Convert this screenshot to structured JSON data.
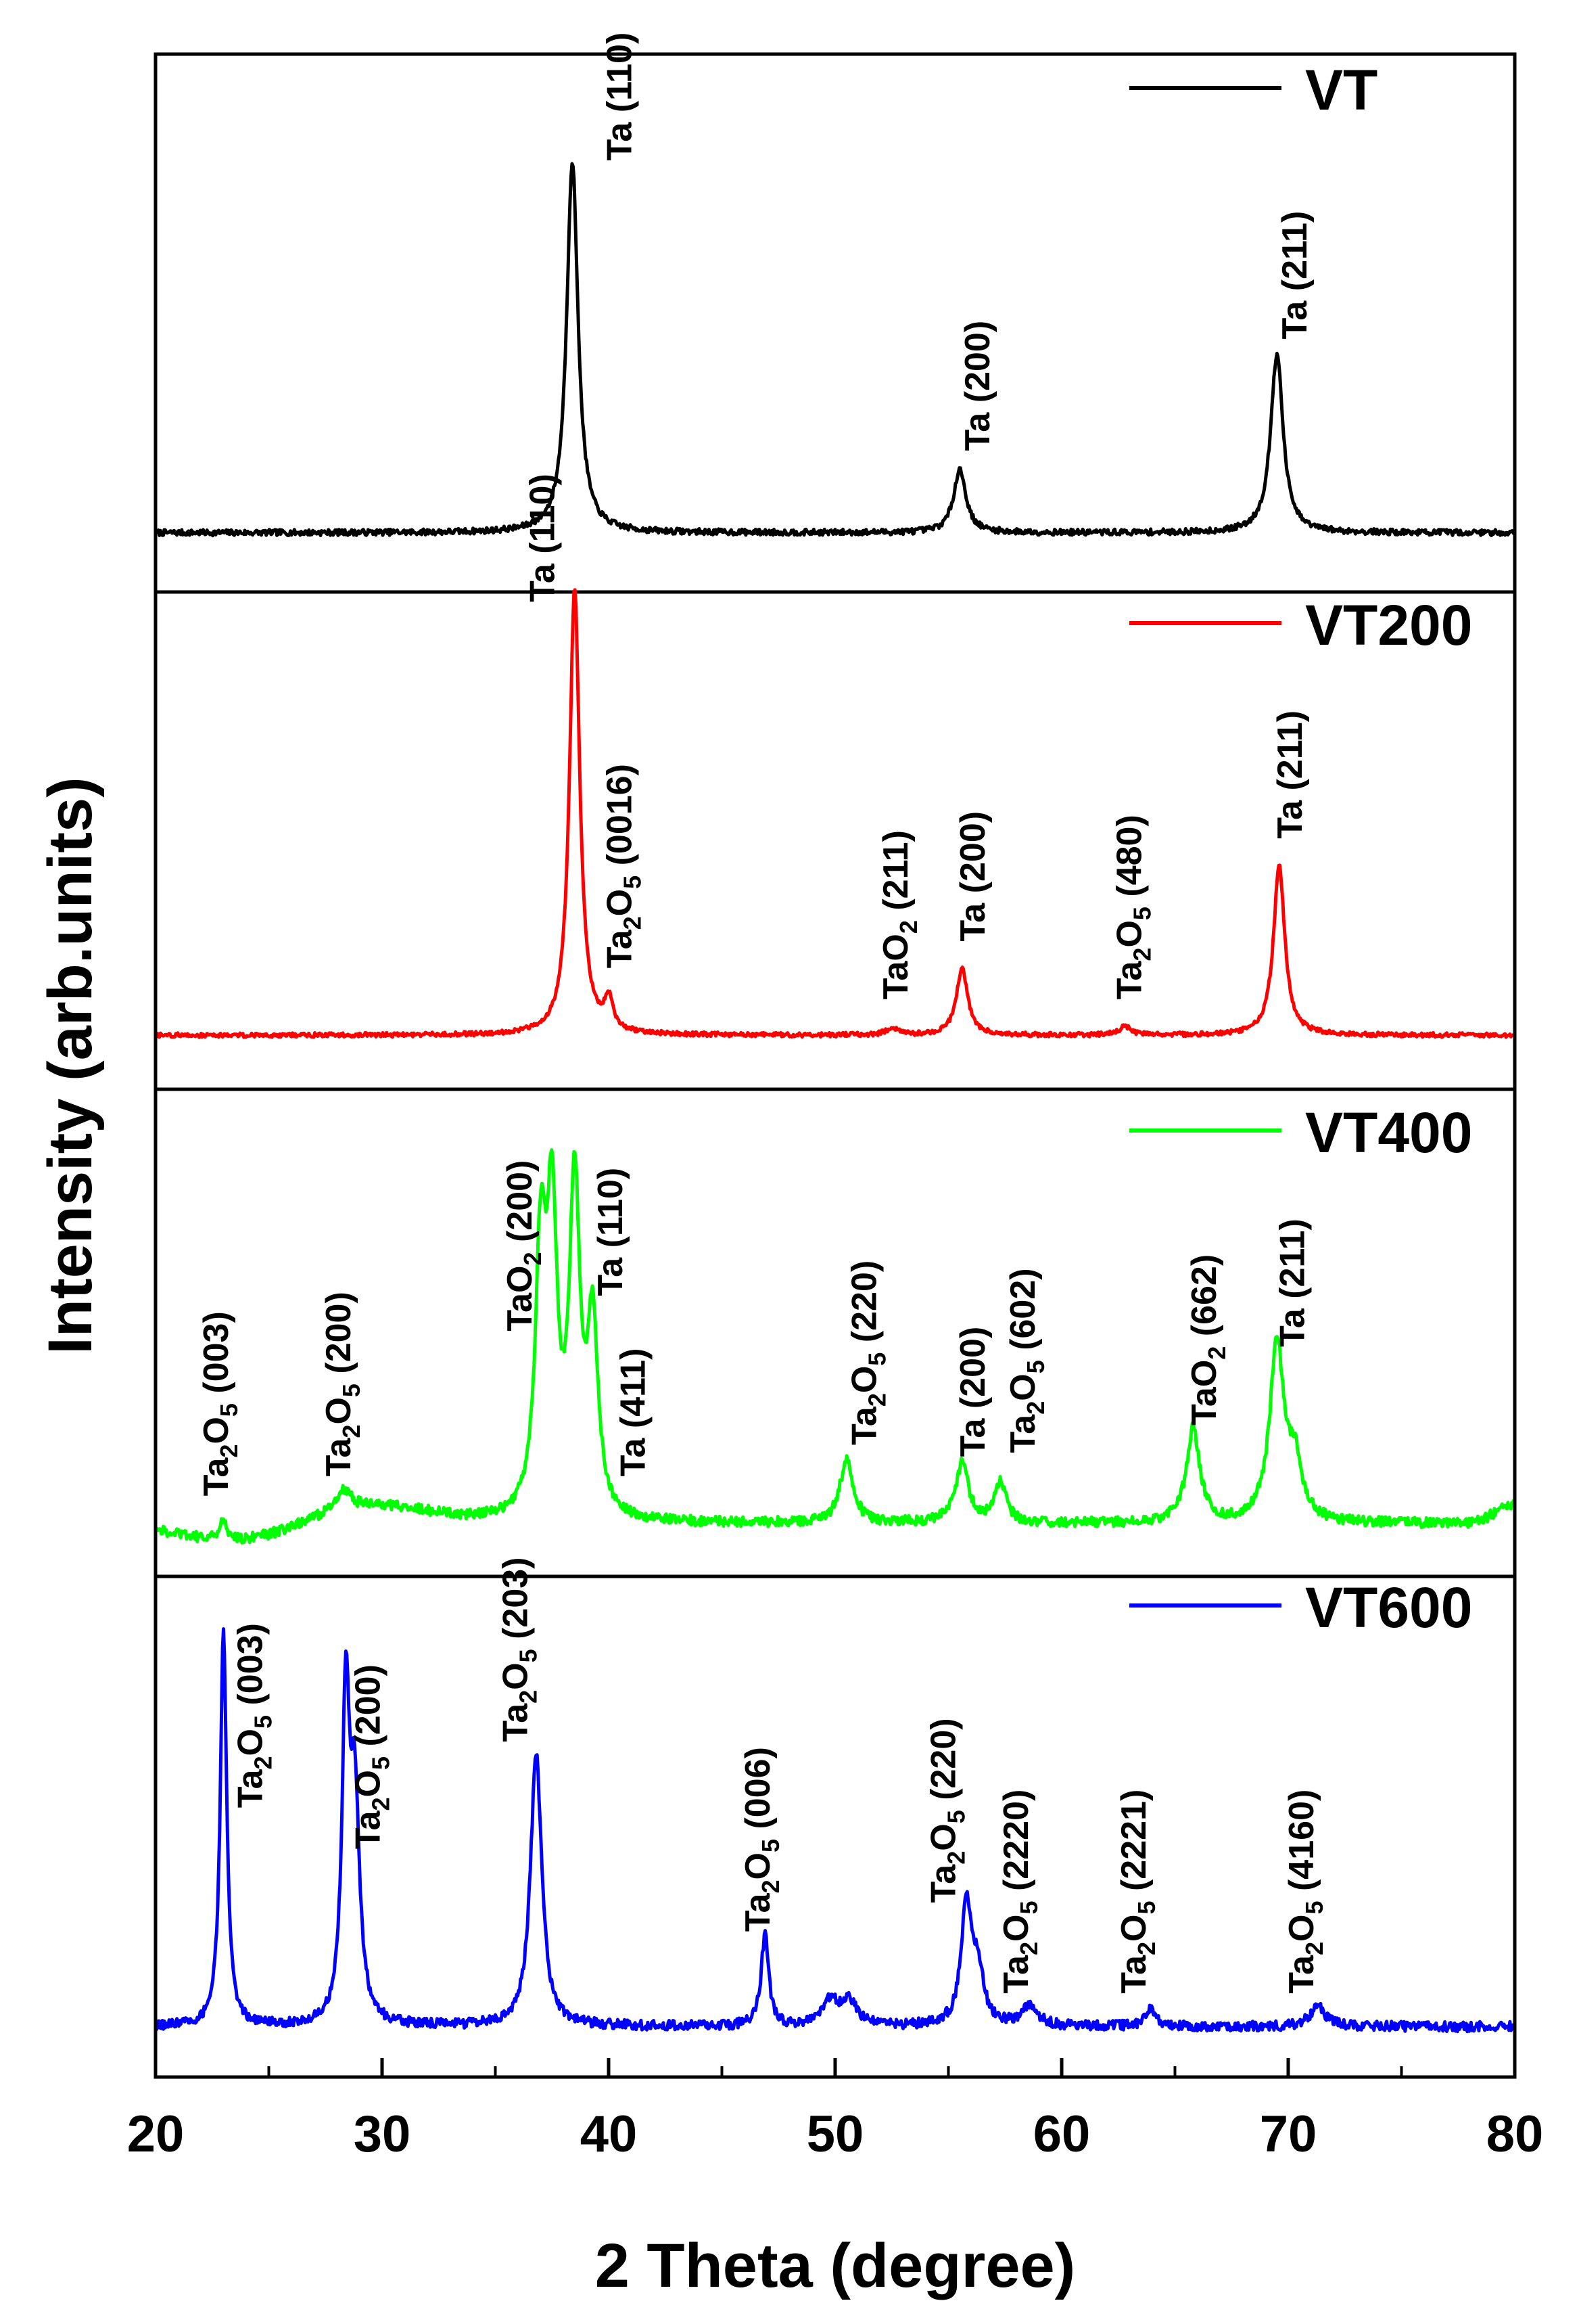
{
  "chart_data": {
    "type": "line",
    "layout": "stacked",
    "xlabel": "2 Theta (degree)",
    "ylabel": "Intensity (arb.units)",
    "xlim": [
      20,
      80
    ],
    "x_ticks": [
      20,
      30,
      40,
      50,
      60,
      70,
      80
    ],
    "x_tick_labels": [
      "20",
      "30",
      "40",
      "50",
      "60",
      "70",
      "80"
    ],
    "y_ticks_shown": false,
    "grid": false,
    "legend_placement": "top-right of each panel",
    "noise_seed": 7,
    "panels": [
      {
        "id": "vt",
        "series": {
          "name": "VT",
          "color": "#000000",
          "baseline": 0.05,
          "noise": 0.008,
          "slope": 0.0,
          "peaks": [
            {
              "x": 38.4,
              "height": 1.0,
              "width": 0.3
            },
            {
              "x": 55.5,
              "height": 0.17,
              "width": 0.33
            },
            {
              "x": 69.5,
              "height": 0.48,
              "width": 0.33
            }
          ]
        },
        "annotations": [
          {
            "x": 41.0,
            "y": 1.05,
            "rotate": -90,
            "parts": [
              [
                "t",
                "Ta (110)"
              ]
            ]
          },
          {
            "x": 56.8,
            "y": 0.27,
            "rotate": -90,
            "parts": [
              [
                "t",
                "Ta (200)"
              ]
            ]
          },
          {
            "x": 70.8,
            "y": 0.57,
            "rotate": -90,
            "parts": [
              [
                "t",
                "Ta (211)"
              ]
            ]
          }
        ]
      },
      {
        "id": "vt200",
        "series": {
          "name": "VT200",
          "color": "#ff0000",
          "baseline": 0.03,
          "noise": 0.005,
          "slope": 0.0,
          "peaks": [
            {
              "x": 38.5,
              "height": 1.0,
              "width": 0.27
            },
            {
              "x": 40.0,
              "height": 0.07,
              "width": 0.22
            },
            {
              "x": 52.5,
              "height": 0.015,
              "width": 0.3
            },
            {
              "x": 55.6,
              "height": 0.15,
              "width": 0.3
            },
            {
              "x": 62.8,
              "height": 0.02,
              "width": 0.3
            },
            {
              "x": 69.6,
              "height": 0.38,
              "width": 0.3
            }
          ]
        },
        "annotations": [
          {
            "x": 37.6,
            "y": 1.0,
            "rotate": -90,
            "parts": [
              [
                "t",
                "Ta (110)"
              ]
            ]
          },
          {
            "x": 41.0,
            "y": 0.18,
            "rotate": -90,
            "parts": [
              [
                "t",
                "Ta"
              ],
              [
                "s",
                "2"
              ],
              [
                "t",
                "O"
              ],
              [
                "s",
                "5"
              ],
              [
                "t",
                " (0016)"
              ]
            ]
          },
          {
            "x": 53.2,
            "y": 0.11,
            "rotate": -90,
            "parts": [
              [
                "t",
                "TaO"
              ],
              [
                "s",
                "2"
              ],
              [
                "t",
                " (211)"
              ]
            ]
          },
          {
            "x": 56.6,
            "y": 0.24,
            "rotate": -90,
            "parts": [
              [
                "t",
                "Ta (200)"
              ]
            ]
          },
          {
            "x": 63.5,
            "y": 0.11,
            "rotate": -90,
            "parts": [
              [
                "t",
                "Ta"
              ],
              [
                "s",
                "2"
              ],
              [
                "t",
                "O"
              ],
              [
                "s",
                "5"
              ],
              [
                "t",
                " (480)"
              ]
            ]
          },
          {
            "x": 70.6,
            "y": 0.47,
            "rotate": -90,
            "parts": [
              [
                "t",
                "Ta (211)"
              ]
            ]
          }
        ]
      },
      {
        "id": "vt400",
        "series": {
          "name": "VT400",
          "color": "#00ff00",
          "baseline": 0.1,
          "noise": 0.013,
          "slope": 0.0,
          "bumps": [
            {
              "x": 24.5,
              "height": -0.06,
              "width": 3.0
            },
            {
              "x": 28.5,
              "height": 0.06,
              "width": 3.0
            },
            {
              "x": 80.0,
              "height": 0.05,
              "width": 0.8
            }
          ],
          "peaks": [
            {
              "x": 23.0,
              "height": 0.05,
              "width": 0.2
            },
            {
              "x": 28.3,
              "height": 0.05,
              "width": 0.4
            },
            {
              "x": 37.0,
              "height": 0.64,
              "width": 0.28
            },
            {
              "x": 37.5,
              "height": 0.72,
              "width": 0.28
            },
            {
              "x": 38.5,
              "height": 0.83,
              "width": 0.28
            },
            {
              "x": 39.3,
              "height": 0.48,
              "width": 0.28
            },
            {
              "x": 50.5,
              "height": 0.16,
              "width": 0.35
            },
            {
              "x": 55.6,
              "height": 0.15,
              "width": 0.35
            },
            {
              "x": 57.3,
              "height": 0.1,
              "width": 0.3
            },
            {
              "x": 65.8,
              "height": 0.24,
              "width": 0.35
            },
            {
              "x": 69.5,
              "height": 0.45,
              "width": 0.38
            },
            {
              "x": 70.3,
              "height": 0.14,
              "width": 0.35
            }
          ]
        },
        "annotations": [
          {
            "x": 23.2,
            "y": 0.17,
            "rotate": -90,
            "parts": [
              [
                "t",
                "Ta"
              ],
              [
                "s",
                "2"
              ],
              [
                "t",
                "O"
              ],
              [
                "s",
                "5"
              ],
              [
                "t",
                " (003)"
              ]
            ]
          },
          {
            "x": 28.6,
            "y": 0.22,
            "rotate": -90,
            "parts": [
              [
                "t",
                "Ta"
              ],
              [
                "s",
                "2"
              ],
              [
                "t",
                "O"
              ],
              [
                "s",
                "5"
              ],
              [
                "t",
                " (200)"
              ]
            ]
          },
          {
            "x": 36.6,
            "y": 0.59,
            "rotate": -90,
            "parts": [
              [
                "t",
                "TaO"
              ],
              [
                "s",
                "2"
              ],
              [
                "t",
                " (200)"
              ]
            ]
          },
          {
            "x": 40.6,
            "y": 0.68,
            "rotate": -90,
            "parts": [
              [
                "t",
                "Ta (110)"
              ]
            ]
          },
          {
            "x": 41.6,
            "y": 0.22,
            "rotate": -90,
            "parts": [
              [
                "t",
                "Ta (411)"
              ]
            ]
          },
          {
            "x": 51.8,
            "y": 0.3,
            "rotate": -90,
            "parts": [
              [
                "t",
                "Ta"
              ],
              [
                "s",
                "2"
              ],
              [
                "t",
                "O"
              ],
              [
                "s",
                "5"
              ],
              [
                "t",
                " (220)"
              ]
            ]
          },
          {
            "x": 56.6,
            "y": 0.27,
            "rotate": -90,
            "parts": [
              [
                "t",
                "Ta (200)"
              ]
            ]
          },
          {
            "x": 58.8,
            "y": 0.28,
            "rotate": -90,
            "parts": [
              [
                "t",
                "Ta"
              ],
              [
                "s",
                "2"
              ],
              [
                "t",
                "O"
              ],
              [
                "s",
                "5"
              ],
              [
                "t",
                " (602)"
              ]
            ]
          },
          {
            "x": 66.8,
            "y": 0.35,
            "rotate": -90,
            "parts": [
              [
                "t",
                "TaO"
              ],
              [
                "s",
                "2"
              ],
              [
                "t",
                " (662)"
              ]
            ]
          },
          {
            "x": 70.7,
            "y": 0.55,
            "rotate": -90,
            "parts": [
              [
                "t",
                "Ta (211)"
              ]
            ]
          }
        ]
      },
      {
        "id": "vt600",
        "series": {
          "name": "VT600",
          "color": "#0000ff",
          "baseline": 0.04,
          "noise": 0.012,
          "slope": 0.0,
          "peaks": [
            {
              "x": 23.0,
              "height": 0.96,
              "width": 0.17
            },
            {
              "x": 28.4,
              "height": 0.76,
              "width": 0.2
            },
            {
              "x": 28.8,
              "height": 0.52,
              "width": 0.25
            },
            {
              "x": 36.8,
              "height": 0.66,
              "width": 0.3
            },
            {
              "x": 46.9,
              "height": 0.22,
              "width": 0.2
            },
            {
              "x": 49.8,
              "height": 0.06,
              "width": 0.4
            },
            {
              "x": 50.6,
              "height": 0.06,
              "width": 0.4
            },
            {
              "x": 55.8,
              "height": 0.29,
              "width": 0.28
            },
            {
              "x": 56.3,
              "height": 0.12,
              "width": 0.3
            },
            {
              "x": 58.6,
              "height": 0.05,
              "width": 0.4
            },
            {
              "x": 63.9,
              "height": 0.04,
              "width": 0.3
            },
            {
              "x": 71.3,
              "height": 0.05,
              "width": 0.4
            }
          ]
        },
        "annotations": [
          {
            "x": 24.7,
            "y": 0.57,
            "rotate": -90,
            "parts": [
              [
                "t",
                "Ta"
              ],
              [
                "s",
                "2"
              ],
              [
                "t",
                "O"
              ],
              [
                "s",
                "5"
              ],
              [
                "t",
                " (003)"
              ]
            ]
          },
          {
            "x": 29.9,
            "y": 0.47,
            "rotate": -90,
            "parts": [
              [
                "t",
                "Ta"
              ],
              [
                "s",
                "2"
              ],
              [
                "t",
                "O"
              ],
              [
                "s",
                "5"
              ],
              [
                "t",
                " (200)"
              ]
            ]
          },
          {
            "x": 36.4,
            "y": 0.73,
            "rotate": -90,
            "parts": [
              [
                "t",
                "Ta"
              ],
              [
                "s",
                "2"
              ],
              [
                "t",
                "O"
              ],
              [
                "s",
                "5"
              ],
              [
                "t",
                " (203)"
              ]
            ]
          },
          {
            "x": 47.1,
            "y": 0.27,
            "rotate": -90,
            "parts": [
              [
                "t",
                "Ta"
              ],
              [
                "s",
                "2"
              ],
              [
                "t",
                "O"
              ],
              [
                "s",
                "5"
              ],
              [
                "t",
                " (006)"
              ]
            ]
          },
          {
            "x": 55.3,
            "y": 0.34,
            "rotate": -90,
            "parts": [
              [
                "t",
                "Ta"
              ],
              [
                "s",
                "2"
              ],
              [
                "t",
                "O"
              ],
              [
                "s",
                "5"
              ],
              [
                "t",
                " (220)"
              ]
            ]
          },
          {
            "x": 58.5,
            "y": 0.12,
            "rotate": -90,
            "parts": [
              [
                "t",
                "Ta"
              ],
              [
                "s",
                "2"
              ],
              [
                "t",
                "O"
              ],
              [
                "s",
                "5"
              ],
              [
                "t",
                " (2220)"
              ]
            ]
          },
          {
            "x": 63.7,
            "y": 0.12,
            "rotate": -90,
            "parts": [
              [
                "t",
                "Ta"
              ],
              [
                "s",
                "2"
              ],
              [
                "t",
                "O"
              ],
              [
                "s",
                "5"
              ],
              [
                "t",
                " (2221)"
              ]
            ]
          },
          {
            "x": 71.1,
            "y": 0.12,
            "rotate": -90,
            "parts": [
              [
                "t",
                "Ta"
              ],
              [
                "s",
                "2"
              ],
              [
                "t",
                "O"
              ],
              [
                "s",
                "5"
              ],
              [
                "t",
                " (4160)"
              ]
            ]
          }
        ]
      }
    ]
  }
}
